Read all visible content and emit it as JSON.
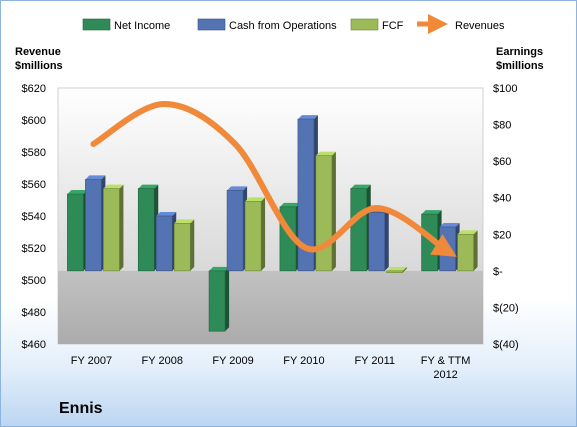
{
  "chart_data": {
    "type": "bar",
    "company": "Ennis",
    "categories": [
      "FY 2007",
      "FY 2008",
      "FY 2009",
      "FY 2010",
      "FY 2011",
      "FY & TTM 2012"
    ],
    "left_axis": {
      "title_line1": "Revenue",
      "title_line2": "$millions",
      "min": 460,
      "max": 620,
      "step": 20,
      "tick_labels": [
        "$460",
        "$480",
        "$500",
        "$520",
        "$540",
        "$560",
        "$580",
        "$600",
        "$620"
      ]
    },
    "right_axis": {
      "title_line1": "Earnings",
      "title_line2": "$millions",
      "min": -40,
      "max": 100,
      "step": 20,
      "tick_labels": [
        "$(40)",
        "$(20)",
        "$-",
        "$20",
        "$40",
        "$60",
        "$80",
        "$100"
      ]
    },
    "series": [
      {
        "name": "Net Income",
        "axis": "right",
        "kind": "bar",
        "color": "#2e8b57",
        "values": [
          42,
          45,
          -33,
          35,
          45,
          31
        ]
      },
      {
        "name": "Cash from Operations",
        "axis": "right",
        "kind": "bar",
        "color": "#5473b3",
        "values": [
          50,
          30,
          44,
          83,
          32,
          24
        ]
      },
      {
        "name": "FCF",
        "axis": "right",
        "kind": "bar",
        "color": "#9cbb58",
        "values": [
          45,
          26,
          38,
          63,
          -1,
          20
        ]
      },
      {
        "name": "Revenues",
        "axis": "left",
        "kind": "line",
        "color": "#f0893a",
        "values": [
          585,
          610,
          585,
          520,
          545,
          518
        ]
      }
    ],
    "grid": false,
    "legend_position": "top"
  }
}
